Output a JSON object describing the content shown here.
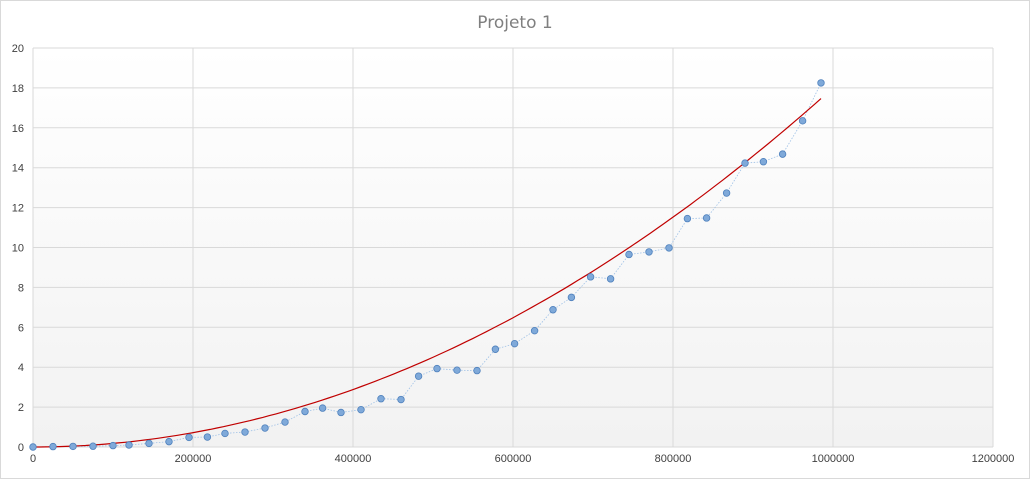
{
  "chart_data": {
    "type": "scatter",
    "title": "Projeto 1",
    "xlabel": "",
    "ylabel": "",
    "xlim": [
      0,
      1200000
    ],
    "ylim": [
      0,
      20
    ],
    "x_ticks": [
      0,
      200000,
      400000,
      600000,
      800000,
      1000000,
      1200000
    ],
    "y_ticks": [
      0,
      2,
      4,
      6,
      8,
      10,
      12,
      14,
      16,
      18,
      20
    ],
    "grid": true,
    "legend": "none",
    "colors": {
      "points": "#7fa9d9",
      "point_stroke": "#4f81bd",
      "connector": "#9fc1e6",
      "trendline": "#c00000",
      "grid": "#d9d9d9",
      "plot_bg_top": "#ffffff",
      "plot_bg_bottom": "#f2f2f2",
      "frame": "#d9d9d9"
    },
    "series": [
      {
        "points": [
          [
            0,
            0.0
          ],
          [
            25000,
            0.02
          ],
          [
            50000,
            0.03
          ],
          [
            75000,
            0.04
          ],
          [
            100000,
            0.07
          ],
          [
            120000,
            0.1
          ],
          [
            145000,
            0.18
          ],
          [
            170000,
            0.27
          ],
          [
            195000,
            0.48
          ],
          [
            218000,
            0.5
          ],
          [
            240000,
            0.68
          ],
          [
            265000,
            0.75
          ],
          [
            290000,
            0.95
          ],
          [
            315000,
            1.25
          ],
          [
            340000,
            1.78
          ],
          [
            362000,
            1.95
          ],
          [
            385000,
            1.73
          ],
          [
            410000,
            1.87
          ],
          [
            435000,
            2.42
          ],
          [
            460000,
            2.38
          ],
          [
            482000,
            3.55
          ],
          [
            505000,
            3.93
          ],
          [
            530000,
            3.85
          ],
          [
            555000,
            3.83
          ],
          [
            578000,
            4.9
          ],
          [
            602000,
            5.18
          ],
          [
            627000,
            5.83
          ],
          [
            650000,
            6.88
          ],
          [
            673000,
            7.5
          ],
          [
            697000,
            8.53
          ],
          [
            722000,
            8.43
          ],
          [
            745000,
            9.65
          ],
          [
            770000,
            9.78
          ],
          [
            795000,
            9.98
          ],
          [
            818000,
            11.45
          ],
          [
            842000,
            11.48
          ],
          [
            867000,
            12.73
          ],
          [
            890000,
            14.23
          ],
          [
            913000,
            14.3
          ],
          [
            937000,
            14.68
          ],
          [
            962000,
            16.35
          ],
          [
            985000,
            18.25
          ]
        ]
      }
    ],
    "trendline": {
      "type": "polynomial",
      "order": 2,
      "coefficients": [
        0.0,
        0.0,
        1.8e-11
      ],
      "x_range": [
        0,
        985000
      ]
    }
  }
}
